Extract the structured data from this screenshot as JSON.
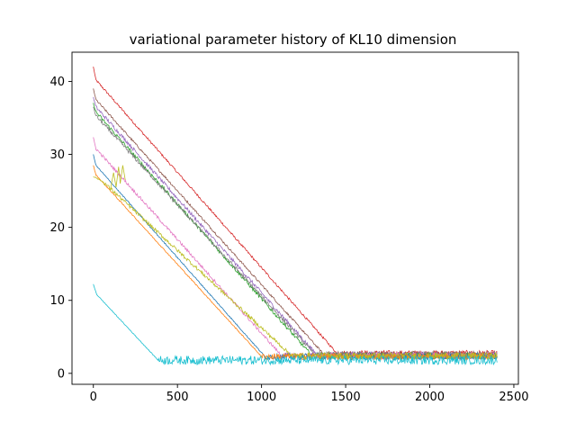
{
  "chart_data": {
    "type": "line",
    "title": "variational parameter history of KL10 dimension",
    "xlabel": "",
    "ylabel": "",
    "xlim": [
      -127,
      2527
    ],
    "ylim": [
      -1.5,
      44
    ],
    "xticks": [
      0,
      500,
      1000,
      1500,
      2000,
      2500
    ],
    "yticks": [
      0,
      10,
      20,
      30,
      40
    ],
    "grid": false,
    "legend": "none",
    "x_max": 2400,
    "series": [
      {
        "color": "#d62728",
        "start": 42.0,
        "bend_x": 15,
        "bend_y": 40.2,
        "floor_x": 1450,
        "floor_y": 2.7,
        "noise": 0.3,
        "floor_noise": 0.9
      },
      {
        "color": "#8c564b",
        "start": 39.0,
        "bend_x": 15,
        "bend_y": 37.5,
        "floor_x": 1370,
        "floor_y": 2.6,
        "noise": 0.3,
        "floor_noise": 0.9
      },
      {
        "color": "#9467bd",
        "start": 37.8,
        "bend_x": 15,
        "bend_y": 36.5,
        "floor_x": 1330,
        "floor_y": 2.5,
        "noise": 0.5,
        "floor_noise": 0.9
      },
      {
        "color": "#2ca02c",
        "start": 37.0,
        "bend_x": 15,
        "bend_y": 35.8,
        "floor_x": 1300,
        "floor_y": 2.4,
        "noise": 0.5,
        "floor_noise": 0.9
      },
      {
        "color": "#7f7f7f",
        "start": 36.5,
        "bend_x": 15,
        "bend_y": 35.3,
        "floor_x": 1320,
        "floor_y": 2.5,
        "noise": 0.5,
        "floor_noise": 0.9
      },
      {
        "color": "#e377c2",
        "start": 32.3,
        "bend_x": 15,
        "bend_y": 30.8,
        "floor_x": 1120,
        "floor_y": 2.4,
        "noise": 0.4,
        "floor_noise": 0.9
      },
      {
        "color": "#1f77b4",
        "start": 30.0,
        "bend_x": 15,
        "bend_y": 28.5,
        "floor_x": 1020,
        "floor_y": 2.3,
        "noise": 0.15,
        "floor_noise": 0.9
      },
      {
        "color": "#ff7f0e",
        "start": 28.5,
        "bend_x": 15,
        "bend_y": 27.2,
        "floor_x": 1000,
        "floor_y": 2.3,
        "noise": 0.15,
        "floor_noise": 0.9
      },
      {
        "color": "#bcbd22",
        "start": 27.0,
        "bend_x": 60,
        "bend_y": 26.2,
        "floor_x": 1180,
        "floor_y": 2.4,
        "noise": 0.5,
        "floor_noise": 0.9
      },
      {
        "color": "#17becf",
        "start": 12.2,
        "bend_x": 20,
        "bend_y": 10.8,
        "floor_x": 385,
        "floor_y": 1.8,
        "noise": 0.1,
        "floor_noise": 1.2
      }
    ],
    "spikes": [
      {
        "series": "#bcbd22",
        "x": [
          100,
          120,
          135,
          150,
          160,
          175,
          190
        ],
        "y": [
          25.0,
          27.5,
          25.5,
          28.3,
          26.0,
          28.5,
          26.5
        ]
      }
    ]
  }
}
